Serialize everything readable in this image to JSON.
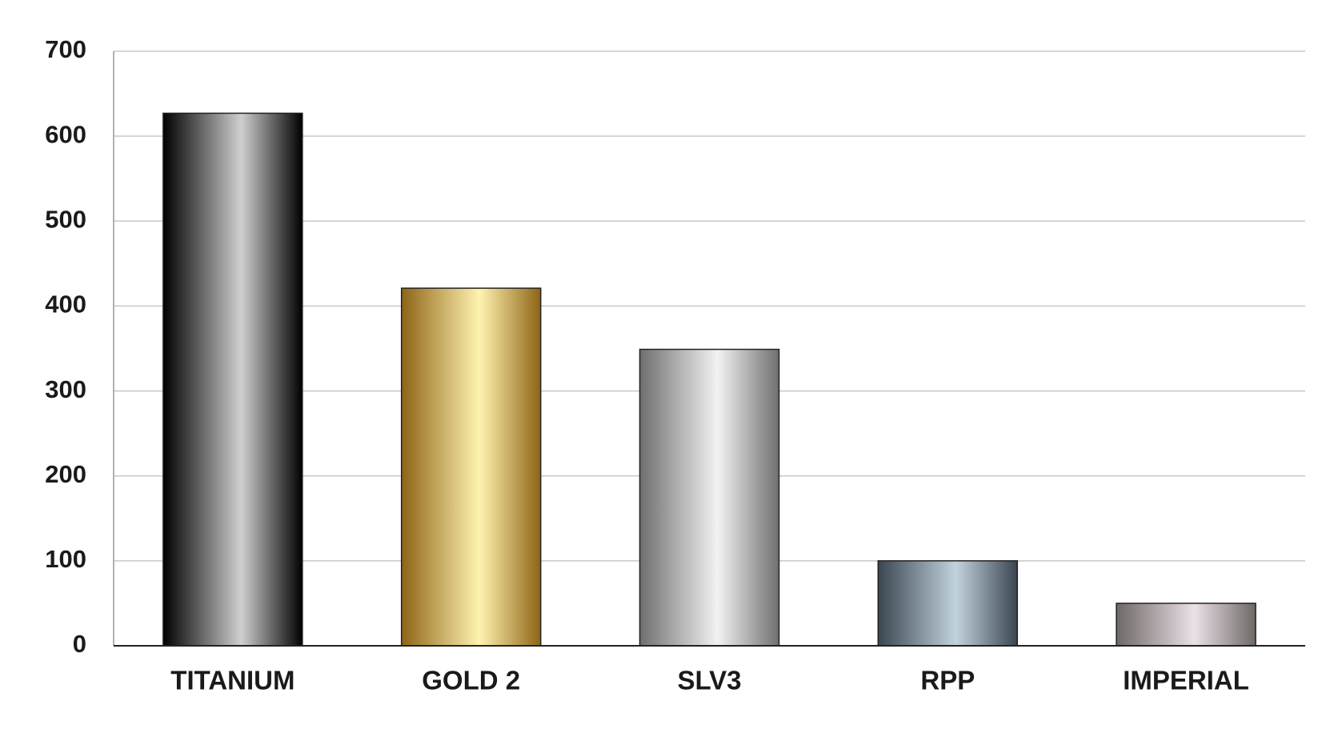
{
  "chart_data": {
    "type": "bar",
    "categories": [
      "TITANIUM",
      "GOLD 2",
      "SLV3",
      "RPP",
      "IMPERIAL"
    ],
    "values": [
      627,
      421,
      349,
      100,
      50
    ],
    "colors": [
      "#000000",
      "#8e6416",
      "#6f6f6f",
      "#3a4550",
      "#6e6866"
    ],
    "highlight_colors": [
      "#cfcfcf",
      "#fff3b0",
      "#f2f2f2",
      "#c2d3de",
      "#ebe1e8"
    ],
    "ylim": [
      0,
      700
    ],
    "yticks": [
      0,
      100,
      200,
      300,
      400,
      500,
      600,
      700
    ],
    "grid": true
  }
}
